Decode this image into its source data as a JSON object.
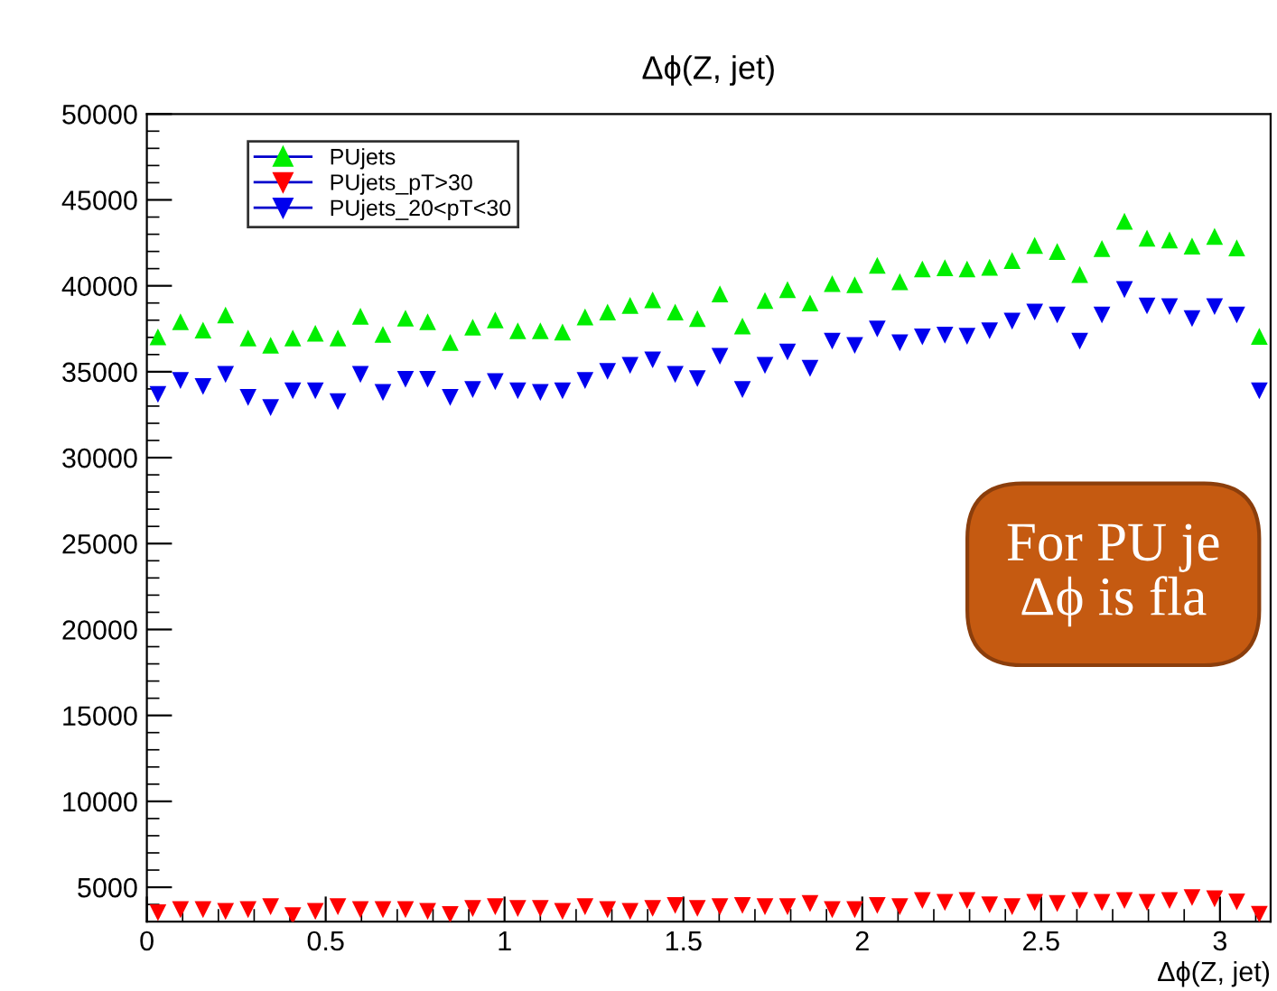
{
  "chart_data": {
    "type": "scatter",
    "title": "Δϕ(Z, jet)",
    "xlabel": "Δϕ(Z, jet)",
    "x": [
      0.031,
      0.094,
      0.157,
      0.22,
      0.283,
      0.346,
      0.408,
      0.471,
      0.534,
      0.597,
      0.66,
      0.723,
      0.785,
      0.848,
      0.911,
      0.974,
      1.037,
      1.1,
      1.162,
      1.225,
      1.288,
      1.351,
      1.414,
      1.477,
      1.539,
      1.602,
      1.665,
      1.728,
      1.791,
      1.854,
      1.916,
      1.979,
      2.042,
      2.105,
      2.168,
      2.231,
      2.293,
      2.356,
      2.419,
      2.482,
      2.545,
      2.608,
      2.67,
      2.733,
      2.796,
      2.859,
      2.922,
      2.985,
      3.047,
      3.11
    ],
    "series": [
      {
        "name": "PUjets",
        "color": "#00ee00",
        "marker": "triangle",
        "values": [
          37030,
          37910,
          37420,
          38300,
          36960,
          36540,
          36960,
          37240,
          36960,
          38230,
          37170,
          38120,
          37910,
          36710,
          37590,
          38010,
          37380,
          37380,
          37310,
          38190,
          38470,
          38860,
          39180,
          38470,
          38090,
          39530,
          37660,
          39140,
          39780,
          39000,
          40130,
          40060,
          41190,
          40240,
          40980,
          41050,
          40980,
          41080,
          41470,
          42350,
          42000,
          40660,
          42170,
          43760,
          42770,
          42670,
          42310,
          42880,
          42210,
          37060
        ]
      },
      {
        "name": "PUjets_pT>30",
        "color": "#ff0000",
        "marker": "triangle_down",
        "values": [
          3520,
          3700,
          3700,
          3590,
          3700,
          3870,
          3340,
          3590,
          3870,
          3700,
          3700,
          3700,
          3590,
          3410,
          3760,
          3870,
          3760,
          3760,
          3590,
          3870,
          3700,
          3590,
          3770,
          3940,
          3770,
          3870,
          3940,
          3870,
          3870,
          4050,
          3700,
          3700,
          3940,
          3870,
          4230,
          4120,
          4230,
          3980,
          3870,
          4120,
          4050,
          4230,
          4120,
          4230,
          4120,
          4230,
          4400,
          4330,
          4150,
          3420
        ]
      },
      {
        "name": "PUjets_20<pT<30",
        "color": "#0000ee",
        "marker": "triangle_down",
        "values": [
          33680,
          34490,
          34140,
          34840,
          33500,
          32910,
          33890,
          33890,
          33260,
          34840,
          33790,
          34560,
          34560,
          33500,
          33960,
          34420,
          33890,
          33790,
          33890,
          34490,
          35020,
          35370,
          35690,
          34840,
          34600,
          35900,
          33960,
          35370,
          36150,
          35200,
          36780,
          36530,
          37490,
          36680,
          37030,
          37130,
          37060,
          37380,
          37940,
          38470,
          38300,
          36780,
          38300,
          39780,
          38830,
          38790,
          38090,
          38790,
          38300,
          33890
        ]
      }
    ],
    "xlim": [
      0,
      3.1416
    ],
    "ylim": [
      3000,
      50000
    ],
    "xticks": [
      0,
      0.5,
      1,
      1.5,
      2,
      2.5,
      3
    ],
    "yticks": [
      5000,
      10000,
      15000,
      20000,
      25000,
      30000,
      35000,
      40000,
      45000,
      50000
    ],
    "grid": false,
    "legend": "top left",
    "annotations": [
      "For PU je\nΔϕ is fla"
    ]
  }
}
